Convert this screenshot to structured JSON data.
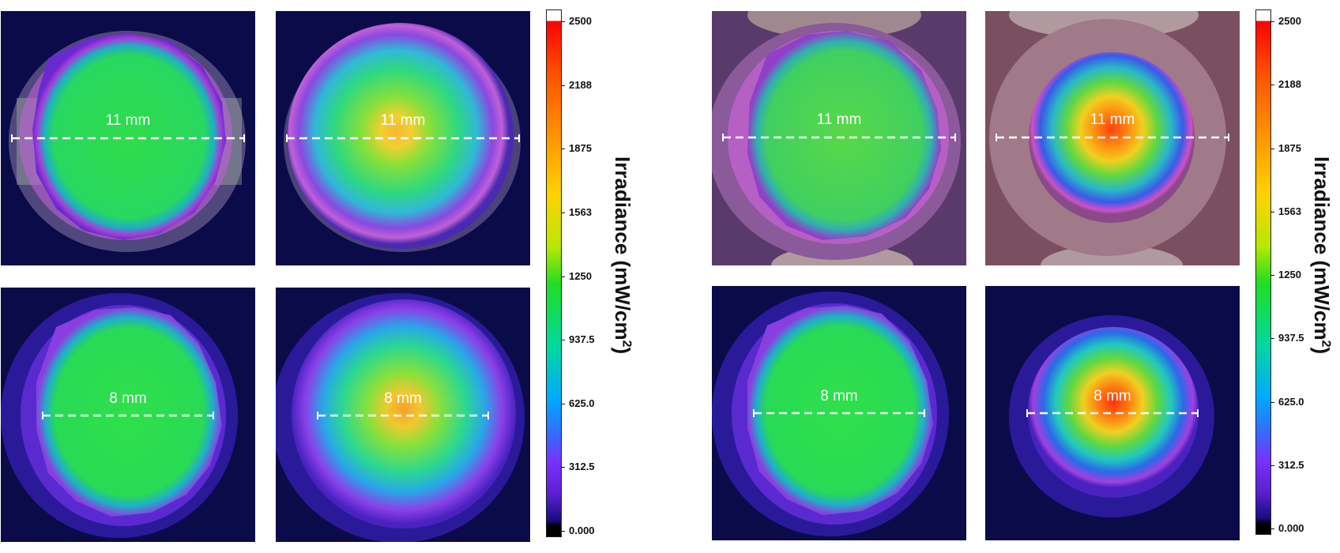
{
  "colorbar": {
    "title_main": "Irradiance (mW/cm",
    "title_sup": "2",
    "title_close": ")",
    "ticks": [
      "2500",
      "2188",
      "1875",
      "1563",
      "1250",
      "937.5",
      "625.0",
      "312.5",
      "0.000"
    ]
  },
  "panels": [
    {
      "id": "a",
      "label": "11 mm",
      "style": "flat",
      "background": "tooth-side"
    },
    {
      "id": "b",
      "label": "11 mm",
      "style": "peaked",
      "background": "tooth-side"
    },
    {
      "id": "c",
      "label": "8 mm",
      "style": "flat",
      "background": "plain"
    },
    {
      "id": "d",
      "label": "8 mm",
      "style": "peaked",
      "background": "plain"
    },
    {
      "id": "e",
      "label": "11 mm",
      "style": "flat",
      "background": "tooth-occlusal"
    },
    {
      "id": "f",
      "label": "11 mm",
      "style": "hot",
      "background": "tooth-occlusal"
    },
    {
      "id": "g",
      "label": "8 mm",
      "style": "flat",
      "background": "plain"
    },
    {
      "id": "h",
      "label": "8 mm",
      "style": "hot",
      "background": "plain"
    }
  ],
  "colors": {
    "background": "#0b0b4a",
    "halo": "#5a25c8",
    "flat_fill": "#22dd44",
    "peak": "#ff3010",
    "scale_top": "#ff0000",
    "scale_bottom": "#000000"
  }
}
